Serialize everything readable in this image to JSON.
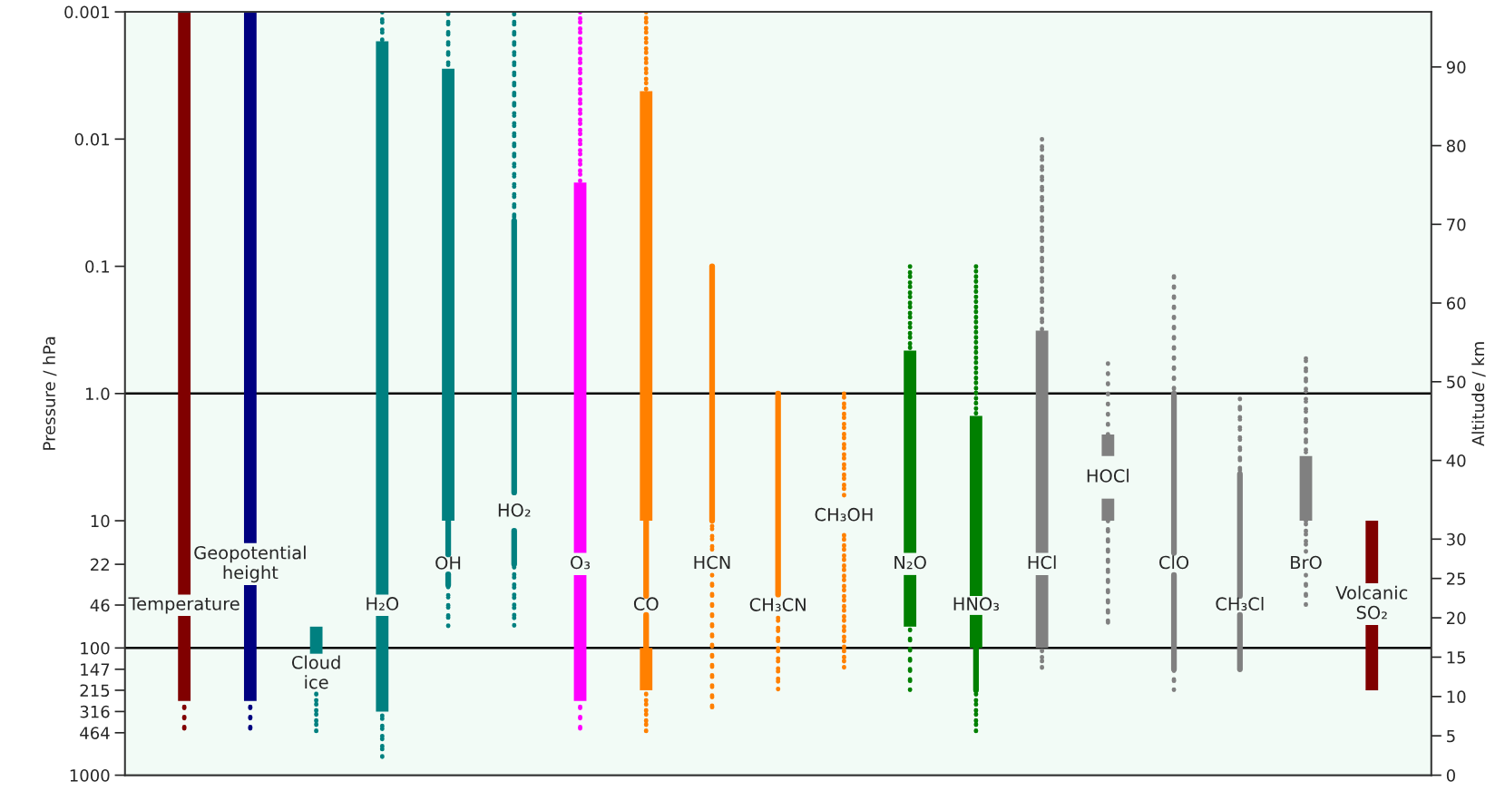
{
  "chart_data": {
    "type": "bar",
    "categories": [
      null,
      null,
      null,
      null,
      null,
      null,
      null,
      null,
      null,
      null,
      null,
      null,
      null,
      null,
      null,
      null,
      null,
      null,
      null
    ],
    "series": [
      {
        "colors": [
          "#800000",
          "#000080",
          "#008080",
          "#008080",
          "#008080",
          "#008080",
          "#ff00ff",
          "#ff8000",
          "#ff8000",
          "#ff8000",
          "#ff8000",
          "#008000",
          "#008000",
          "#808080",
          "#808080",
          "#808080",
          "#808080",
          "#808080",
          "#800000"
        ],
        "base": [
          0.001,
          0.001,
          68,
          0.0017,
          0.0028,
          null,
          0.022,
          0.0042,
          null,
          null,
          null,
          0.46,
          1.5,
          0.32,
          2.1,
          null,
          null,
          3.1,
          10
        ],
        "values": [
          37.999,
          14.999,
          43,
          37.9983,
          9.9972,
          null,
          17.878,
          9.9958,
          null,
          null,
          null,
          17.44,
          37.5,
          17.58,
          1.0,
          null,
          null,
          6.9,
          21
        ]
      },
      {
        "colors": [
          "#800000",
          "#000080",
          "#008080",
          "#008080",
          "#008080",
          "#008080",
          "#ff00ff",
          "#ff8000",
          "#ff8000",
          "#ff8000",
          "#ff8000",
          "#008000",
          "#008000",
          "#808080",
          "#808080",
          "#808080",
          "#808080",
          "#808080",
          "#800000"
        ],
        "base": [
          56,
          32,
          null,
          56,
          null,
          null,
          26.7,
          100,
          null,
          null,
          null,
          26.7,
          55,
          26.7,
          6.7,
          null,
          null,
          null,
          66
        ],
        "values": [
          205,
          229,
          null,
          260,
          null,
          null,
          234.3,
          115,
          null,
          null,
          null,
          41.3,
          45,
          73.3,
          3.3,
          null,
          null,
          null,
          149
        ]
      },
      {
        "line_style": "solid",
        "colors": [
          "#800000",
          "#000080",
          "#008080",
          "#008080",
          "#008080",
          "#008080",
          "#ff00ff",
          "#ff8000",
          "#ff8000",
          "#ff8000",
          "#ff8000",
          "#008000",
          "#008000",
          "#808080",
          "#808080",
          "#808080",
          "#808080",
          "#808080",
          "#800000"
        ],
        "base": [
          null,
          null,
          null,
          null,
          10,
          0.044,
          null,
          10,
          0.1,
          1,
          null,
          null,
          100,
          null,
          null,
          1,
          4.3,
          null,
          null
        ],
        "values": [
          null,
          null,
          null,
          null,
          8.4,
          5.956,
          null,
          29,
          9.9,
          37,
          null,
          null,
          115,
          null,
          null,
          16.9,
          34.7,
          null,
          null
        ]
      },
      {
        "line_style": "solid",
        "colors": [
          "#800000",
          "#000080",
          "#008080",
          "#008080",
          "#008080",
          "#008080",
          "#ff00ff",
          "#ff8000",
          "#ff8000",
          "#ff8000",
          "#ff8000",
          "#008000",
          "#008000",
          "#808080",
          "#808080",
          "#808080",
          "#808080",
          "#808080",
          "#800000"
        ],
        "base": [
          null,
          null,
          null,
          null,
          26.4,
          12,
          null,
          55,
          null,
          null,
          null,
          null,
          null,
          null,
          null,
          26.7,
          55,
          null,
          null
        ],
        "values": [
          null,
          null,
          null,
          null,
          5.6,
          10,
          null,
          45,
          null,
          null,
          null,
          null,
          null,
          null,
          null,
          120.3,
          92,
          null,
          null
        ]
      },
      {
        "line_style": "dotted",
        "colors": [
          "#800000",
          "#000080",
          "#008080",
          "#008080",
          "#008080",
          "#008080",
          "#ff00ff",
          "#ff8000",
          "#ff8000",
          "#ff8000",
          "#ff8000",
          "#008000",
          "#008000",
          "#808080",
          "#808080",
          "#808080",
          "#808080",
          "#808080",
          "#800000"
        ],
        "base": [
          290,
          290,
          230,
          0.001,
          0.001,
          0.001,
          0.001,
          0.001,
          11,
          58,
          1,
          0.1,
          0.1,
          0.01,
          0.58,
          0.12,
          1.1,
          0.53,
          null
        ],
        "values": [
          174,
          174,
          234,
          0.0007,
          0.0018,
          0.043,
          0.021,
          0.0032,
          6.9,
          157,
          5.5,
          0.36,
          1.4,
          0.31,
          1.52,
          0.88,
          3.2,
          2.57,
          null
        ]
      },
      {
        "line_style": "dotted",
        "colors": [
          "#800000",
          "#000080",
          "#008080",
          "#008080",
          "#008080",
          "#008080",
          "#ff00ff",
          "#ff8000",
          "#ff8000",
          "#ff8000",
          "#ff8000",
          "#008000",
          "#008000",
          "#808080",
          "#808080",
          "#808080",
          "#808080",
          "#808080",
          "#800000"
        ],
        "base": [
          null,
          null,
          null,
          341,
          32,
          22,
          290,
          230,
          26.7,
          null,
          13,
          72,
          230,
          105,
          10,
          150,
          null,
          10,
          null
        ],
        "values": [
          null,
          null,
          null,
          389,
          36,
          46,
          174,
          234,
          289.3,
          null,
          134,
          143,
          234,
          42,
          58,
          65,
          null,
          7.9,
          null
        ]
      },
      {
        "line_style": "dotted",
        "colors": [
          "#800000",
          "#000080",
          "#008080",
          "#008080",
          "#008080",
          "#008080",
          "#ff00ff",
          "#ff8000",
          "#ff8000",
          "#ff8000",
          "#ff8000",
          "#008000",
          "#008000",
          "#808080",
          "#808080",
          "#808080",
          "#808080",
          "#808080",
          "#800000"
        ],
        "base": [
          null,
          null,
          null,
          null,
          null,
          null,
          null,
          null,
          null,
          null,
          null,
          null,
          null,
          null,
          null,
          null,
          null,
          26.7,
          null
        ],
        "values": [
          null,
          null,
          null,
          null,
          null,
          null,
          null,
          null,
          null,
          null,
          null,
          null,
          null,
          null,
          null,
          null,
          null,
          19.3,
          null
        ]
      }
    ],
    "annotations": [
      "Temperature",
      "Geopotential\nheight",
      "Cloud\nice",
      "H₂O",
      "OH",
      "HO₂",
      "O₃",
      "CO",
      "HCN",
      "CH₃CN",
      "CH₃OH",
      "N₂O",
      "HNO₃",
      "HCl",
      "HOCl",
      "ClO",
      "CH₃Cl",
      "BrO",
      "Volcanic\nSO₂"
    ],
    "ref_lines": [
      {
        "axis": "y",
        "value": 1,
        "color": "#000000"
      },
      {
        "axis": "y",
        "value": 100,
        "color": "#000000"
      }
    ],
    "log": true,
    "ylabel": "Pressure / hPa",
    "y2label": "Altitude / km",
    "ylim": [
      1000,
      0.001
    ],
    "yticks": [
      0.001,
      0.01,
      0.1,
      {
        "value": 1,
        "label": "1.0"
      },
      10,
      22,
      46,
      100,
      147,
      215,
      316,
      464,
      1000
    ],
    "y2lim": [
      0,
      97
    ],
    "y2ticks": [
      0,
      5,
      10,
      15,
      20,
      25,
      30,
      40,
      50,
      60,
      70,
      80,
      90
    ],
    "tick_labels": "y"
  }
}
